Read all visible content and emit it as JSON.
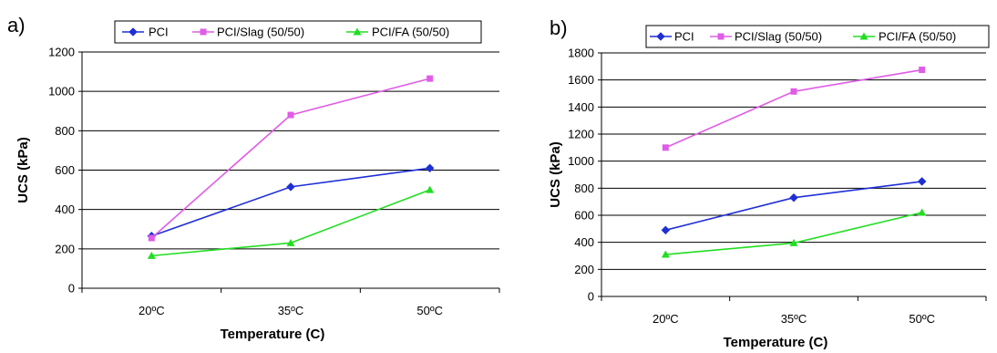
{
  "colors": {
    "PCI": "#1f2fd6",
    "PCI/Slag (50/50)": "#e05ce6",
    "PCI/FA (50/50)": "#22dd22"
  },
  "chart_data": [
    {
      "type": "line",
      "panel_label": "a)",
      "categories": [
        "20ºC",
        "35ºC",
        "50ºC"
      ],
      "xlabel": "Temperature (C)",
      "ylabel": "UCS (kPa)",
      "ylim": [
        0,
        1200
      ],
      "yticks": [
        0,
        200,
        400,
        600,
        800,
        1000,
        1200
      ],
      "grid": "horizontal",
      "legend_position": "top",
      "series": [
        {
          "name": "PCI",
          "marker": "diamond",
          "values": [
            265,
            515,
            610
          ]
        },
        {
          "name": "PCI/Slag (50/50)",
          "marker": "square",
          "values": [
            255,
            880,
            1065
          ]
        },
        {
          "name": "PCI/FA (50/50)",
          "marker": "triangle",
          "values": [
            165,
            230,
            500
          ]
        }
      ]
    },
    {
      "type": "line",
      "panel_label": "b)",
      "categories": [
        "20ºC",
        "35ºC",
        "50ºC"
      ],
      "xlabel": "Temperature (C)",
      "ylabel": "UCS (kPa)",
      "ylim": [
        0,
        1800
      ],
      "yticks": [
        0,
        200,
        400,
        600,
        800,
        1000,
        1200,
        1400,
        1600,
        1800
      ],
      "grid": "horizontal",
      "legend_position": "top",
      "series": [
        {
          "name": "PCI",
          "marker": "diamond",
          "values": [
            490,
            730,
            850
          ]
        },
        {
          "name": "PCI/Slag (50/50)",
          "marker": "square",
          "values": [
            1100,
            1515,
            1675
          ]
        },
        {
          "name": "PCI/FA (50/50)",
          "marker": "triangle",
          "values": [
            310,
            395,
            620
          ]
        }
      ]
    }
  ]
}
